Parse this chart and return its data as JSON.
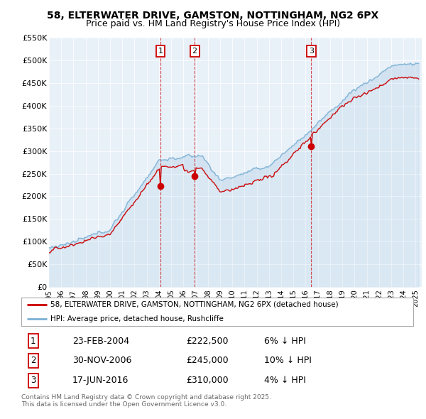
{
  "title": "58, ELTERWATER DRIVE, GAMSTON, NOTTINGHAM, NG2 6PX",
  "subtitle": "Price paid vs. HM Land Registry's House Price Index (HPI)",
  "ylim": [
    0,
    550000
  ],
  "xlim_start": 1995.0,
  "xlim_end": 2025.5,
  "bg_color": "#ffffff",
  "plot_bg": "#e8f0f8",
  "sales": [
    {
      "label": "1",
      "date": "23-FEB-2004",
      "year": 2004.12,
      "price": 222500,
      "pct": "6% ↓ HPI"
    },
    {
      "label": "2",
      "date": "30-NOV-2006",
      "year": 2006.92,
      "price": 245000,
      "pct": "10% ↓ HPI"
    },
    {
      "label": "3",
      "date": "17-JUN-2016",
      "year": 2016.46,
      "price": 310000,
      "pct": "4% ↓ HPI"
    }
  ],
  "legend_line1": "58, ELTERWATER DRIVE, GAMSTON, NOTTINGHAM, NG2 6PX (detached house)",
  "legend_line2": "HPI: Average price, detached house, Rushcliffe",
  "footer": "Contains HM Land Registry data © Crown copyright and database right 2025.\nThis data is licensed under the Open Government Licence v3.0.",
  "red_color": "#cc0000",
  "blue_color": "#7ab0d4",
  "fill_color": "#c5d9ed",
  "grid_color": "#d0dce8"
}
